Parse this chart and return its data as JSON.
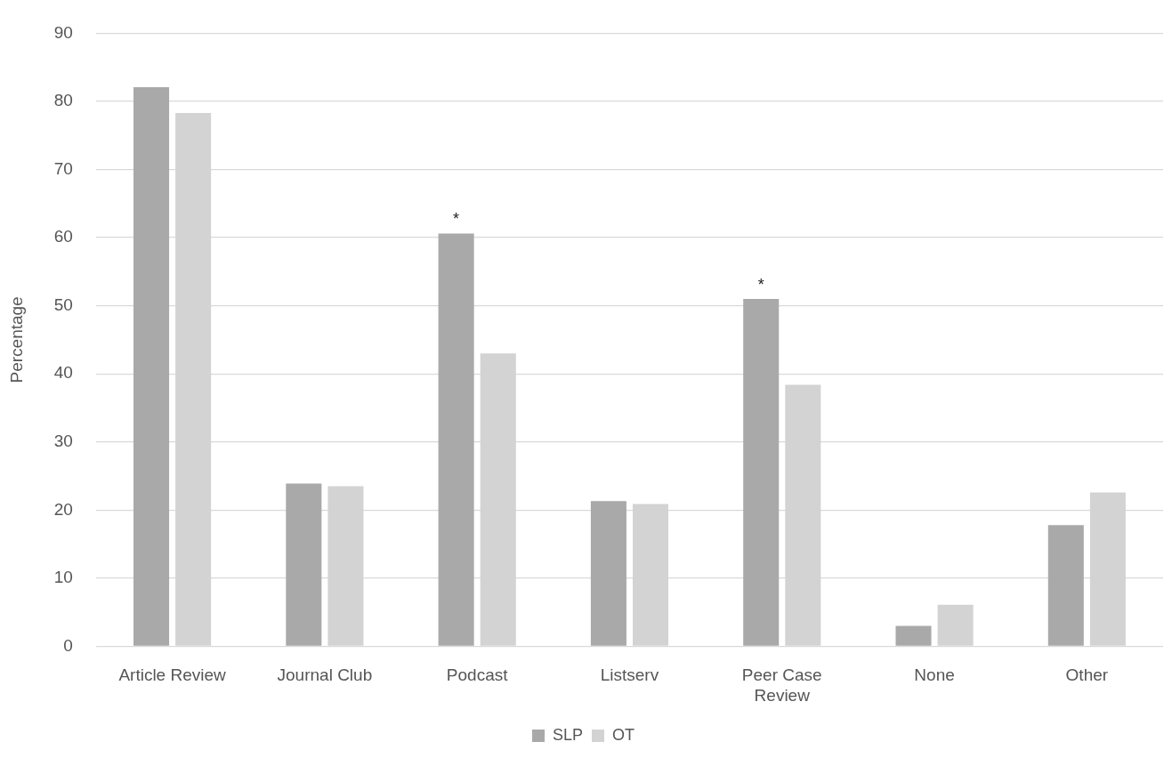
{
  "chart_data": {
    "type": "bar",
    "ylabel": "Percentage",
    "categories": [
      "Article Review",
      "Journal Club",
      "Podcast",
      "Listserv",
      "Peer Case Review",
      "None",
      "Other"
    ],
    "series": [
      {
        "name": "SLP",
        "color": "#a9a9a9",
        "values": [
          82.1,
          23.9,
          60.6,
          21.3,
          51.0,
          3.0,
          17.8
        ]
      },
      {
        "name": "OT",
        "color": "#d3d3d3",
        "values": [
          78.3,
          23.5,
          43.0,
          20.9,
          38.4,
          6.1,
          22.6
        ]
      }
    ],
    "ylim": [
      0,
      90
    ],
    "yticks": [
      0,
      10,
      20,
      30,
      40,
      50,
      60,
      70,
      80,
      90
    ],
    "grid": "y",
    "legend": "bottom",
    "annotations": [
      {
        "text": "*",
        "x": "Podcast",
        "y": 60.6
      },
      {
        "text": "*",
        "x": "Peer Case Review",
        "y": 51.0
      }
    ]
  }
}
